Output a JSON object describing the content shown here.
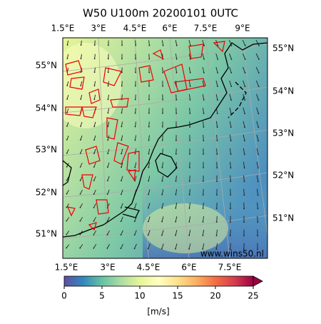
{
  "title": "W50 U100m 20200101 0UTC",
  "top_lon_labels": [
    "1.5°E",
    "3°E",
    "4.5°E",
    "6°E",
    "7.5°E",
    "9°E"
  ],
  "bottom_lon_labels": [
    "1.5°E",
    "3°E",
    "4.5°E",
    "6°E",
    "7.5°E"
  ],
  "left_lat_labels": [
    "55°N",
    "54°N",
    "53°N",
    "52°N",
    "51°N"
  ],
  "right_lat_labels": [
    "55°N",
    "54°N",
    "53°N",
    "52°N",
    "51°N"
  ],
  "watermark": "www.wins50.nl",
  "colorbar": {
    "lim": [
      0,
      25
    ],
    "ticks": [
      0,
      5,
      10,
      15,
      20,
      25
    ],
    "label": "[m/s]"
  }
}
